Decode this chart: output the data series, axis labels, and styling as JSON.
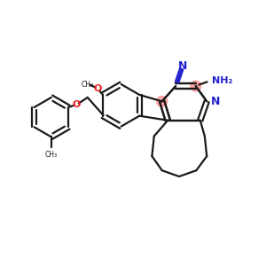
{
  "bg_color": "#ffffff",
  "bond_color": "#1a1a1a",
  "heteroatom_color": "#ee2222",
  "nitrogen_color": "#2222cc",
  "highlight_color": "#ff9999",
  "lw": 1.6,
  "figsize": [
    3.0,
    3.0
  ],
  "dpi": 100,
  "xlim": [
    0,
    10
  ],
  "ylim": [
    0,
    10
  ]
}
